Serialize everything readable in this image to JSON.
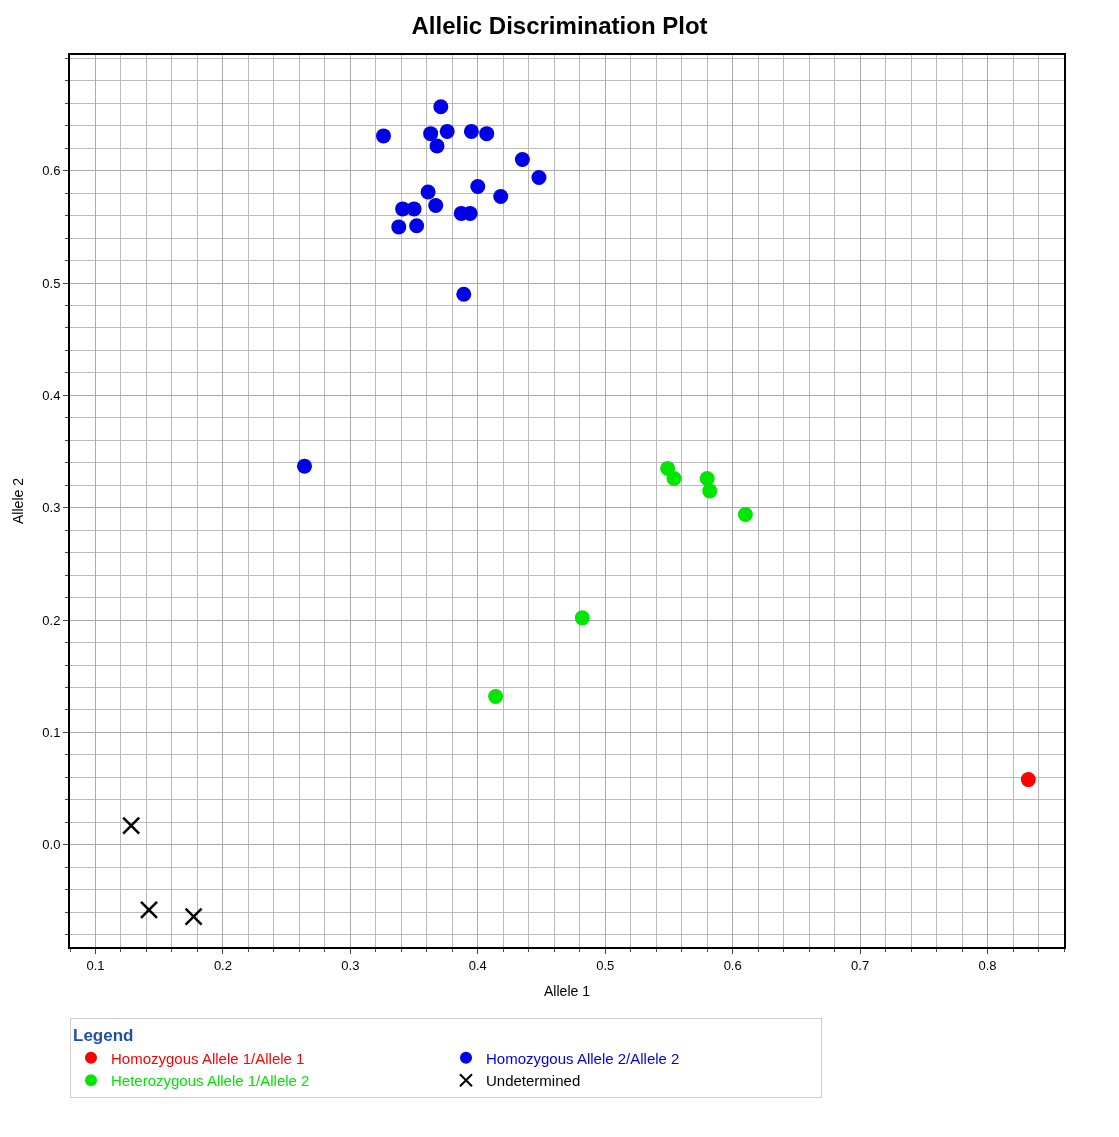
{
  "chart_data": {
    "type": "scatter",
    "title": "Allelic Discrimination Plot",
    "xlabel": "Allele 1",
    "ylabel": "Allele 2",
    "legend_title": "Legend",
    "xlim": [
      0.08,
      0.86
    ],
    "ylim": [
      -0.091,
      0.703
    ],
    "xticks": [
      0.1,
      0.2,
      0.3,
      0.4,
      0.5,
      0.6,
      0.7,
      0.8
    ],
    "yticks": [
      {
        "value": 0,
        "label": "0.0"
      },
      0.1,
      0.2,
      0.3,
      0.4,
      0.5,
      0.6
    ],
    "grid": true,
    "legend": "bottom",
    "series": [
      {
        "name": "Homozygous Allele 1/Allele 1",
        "color": "#ff0000",
        "marker": "circle",
        "x": [
          0.832
        ],
        "values": [
          0.058
        ]
      },
      {
        "name": "Homozygous Allele 2/Allele 2",
        "color": "#0000e6",
        "marker": "circle",
        "x": [
          0.264,
          0.389,
          0.371,
          0.326,
          0.363,
          0.376,
          0.368,
          0.395,
          0.407,
          0.435,
          0.448,
          0.4,
          0.418,
          0.361,
          0.367,
          0.341,
          0.35,
          0.387,
          0.394,
          0.338,
          0.352
        ],
        "values": [
          0.337,
          0.49,
          0.657,
          0.631,
          0.633,
          0.635,
          0.622,
          0.635,
          0.633,
          0.61,
          0.594,
          0.586,
          0.577,
          0.581,
          0.569,
          0.566,
          0.566,
          0.562,
          0.562,
          0.55,
          0.551
        ]
      },
      {
        "name": "Heterozygous Allele 1/Allele 2",
        "color": "#00e600",
        "marker": "circle",
        "x": [
          0.549,
          0.554,
          0.58,
          0.582,
          0.61,
          0.482,
          0.414
        ],
        "values": [
          0.335,
          0.326,
          0.326,
          0.315,
          0.294,
          0.202,
          0.132
        ]
      },
      {
        "name": "Undetermined",
        "color": "#000000",
        "marker": "cross",
        "x": [
          0.128,
          0.142,
          0.177
        ],
        "values": [
          0.017,
          -0.058,
          -0.064
        ]
      }
    ]
  }
}
